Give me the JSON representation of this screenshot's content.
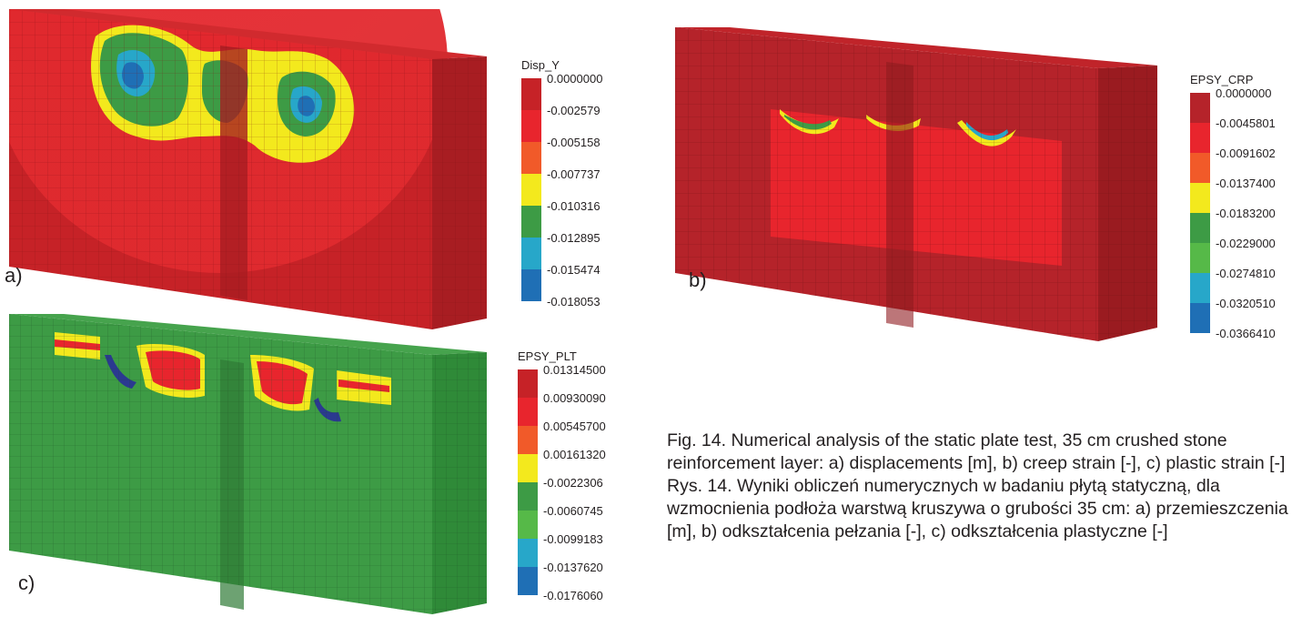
{
  "panels": {
    "a": {
      "label": "a)",
      "legend": {
        "title": "Disp_Y",
        "values": [
          "0.0000000",
          "-0.002579",
          "-0.005158",
          "-0.007737",
          "-0.010316",
          "-0.012895",
          "-0.015474",
          "-0.018053"
        ],
        "colors": [
          "#c62227",
          "#e8252d",
          "#f15a29",
          "#f3e91d",
          "#3d9b45",
          "#27a7c9",
          "#1f6fb5",
          "#2b3990"
        ]
      }
    },
    "b": {
      "label": "b)",
      "legend": {
        "title": "EPSY_CRP",
        "values": [
          "0.0000000",
          "-0.0045801",
          "-0.0091602",
          "-0.0137400",
          "-0.0183200",
          "-0.0229000",
          "-0.0274810",
          "-0.0320510",
          "-0.0366410"
        ],
        "colors": [
          "#b5232a",
          "#e8252d",
          "#f15a29",
          "#f3e91d",
          "#3d9b45",
          "#56b948",
          "#27a7c9",
          "#1f6fb5",
          "#2b3990"
        ]
      }
    },
    "c": {
      "label": "c)",
      "legend": {
        "title": "EPSY_PLT",
        "values": [
          "0.01314500",
          "0.00930090",
          "0.00545700",
          "0.00161320",
          "-0.0022306",
          "-0.0060745",
          "-0.0099183",
          "-0.0137620",
          "-0.0176060"
        ],
        "colors": [
          "#c62227",
          "#e8252d",
          "#f15a29",
          "#f3e91d",
          "#3d9b45",
          "#56b948",
          "#27a7c9",
          "#1f6fb5",
          "#2b3990"
        ]
      }
    }
  },
  "caption": {
    "english": "Fig. 14. Numerical analysis of the static plate test, 35 cm crushed stone reinforcement layer: a) displacements [m], b) creep strain [-], c) plastic strain [-]",
    "polish": "Rys. 14. Wyniki obliczeń numerycznych w badaniu płytą statyczną, dla wzmocnienia podłoża warstwą kruszywa o grubości 35 cm: a) przemieszczenia [m], b) odkształcenia pełzania [-], c) odkształcenia plastyczne [-]"
  }
}
